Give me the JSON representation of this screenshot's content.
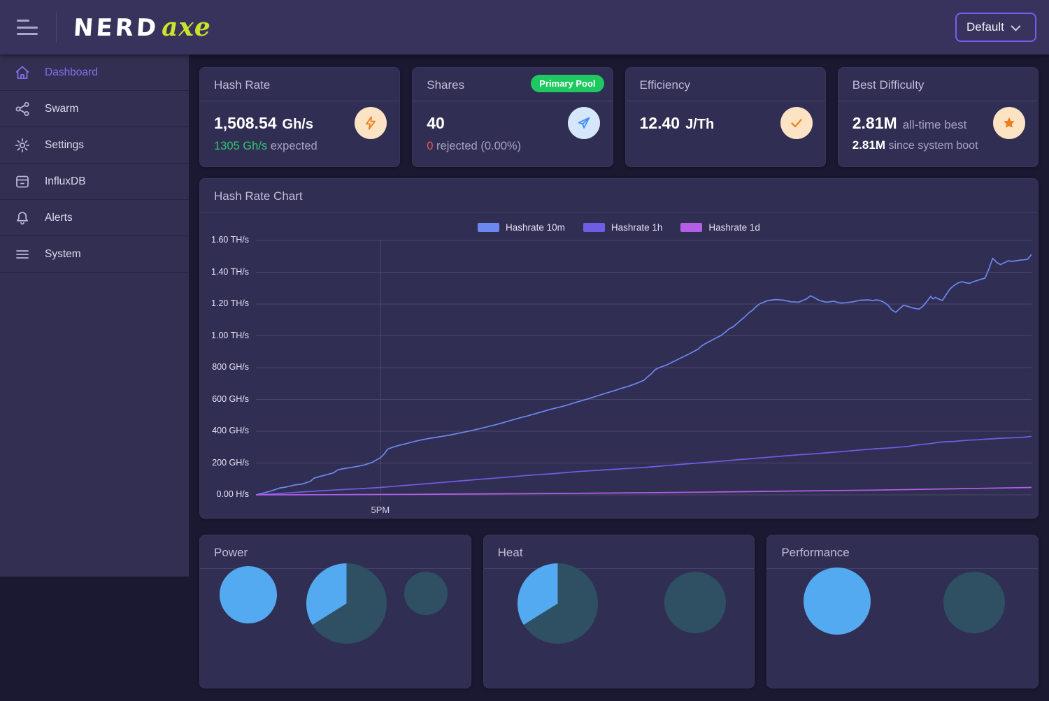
{
  "header": {
    "logo_primary": "NERD",
    "logo_secondary": "axe",
    "profile_label": "Default"
  },
  "sidebar": {
    "items": [
      {
        "label": "Dashboard",
        "icon": "home-icon",
        "active": true
      },
      {
        "label": "Swarm",
        "icon": "share-icon",
        "active": false
      },
      {
        "label": "Settings",
        "icon": "gear-icon",
        "active": false
      },
      {
        "label": "InfluxDB",
        "icon": "database-icon",
        "active": false
      },
      {
        "label": "Alerts",
        "icon": "bell-icon",
        "active": false
      },
      {
        "label": "System",
        "icon": "list-icon",
        "active": false
      }
    ]
  },
  "stats": [
    {
      "title": "Hash Rate",
      "value": "1,508.54",
      "unit": "Gh/s",
      "icon": "bolt-icon",
      "sub_value": "1305 Gh/s",
      "sub_text": "expected"
    },
    {
      "title": "Shares",
      "badge": "Primary Pool",
      "value": "40",
      "icon": "send-icon",
      "sub_value": "0",
      "sub_text": "rejected",
      "sub_extra": "(0.00%)"
    },
    {
      "title": "Efficiency",
      "value": "12.40",
      "unit": "J/Th",
      "icon": "check-icon"
    },
    {
      "title": "Best Difficulty",
      "value": "2.81M",
      "unit": "all-time best",
      "icon": "star-icon",
      "line2_value": "2.81M",
      "line2_text": "since system boot"
    }
  ],
  "chart_card": {
    "title": "Hash Rate Chart"
  },
  "chart_data": {
    "type": "line",
    "title": "Hash Rate Chart",
    "unit": "GH/s",
    "ylim": [
      0,
      1600
    ],
    "grid": true,
    "legend_position": "top-center",
    "y_ticks": [
      {
        "value": 1600,
        "label": "1.60 TH/s"
      },
      {
        "value": 1400,
        "label": "1.40 TH/s"
      },
      {
        "value": 1200,
        "label": "1.20 TH/s"
      },
      {
        "value": 1000,
        "label": "1.00 TH/s"
      },
      {
        "value": 800,
        "label": "800 GH/s"
      },
      {
        "value": 600,
        "label": "600 GH/s"
      },
      {
        "value": 400,
        "label": "400 GH/s"
      },
      {
        "value": 200,
        "label": "200 GH/s"
      },
      {
        "value": 0,
        "label": "0.00 H/s"
      }
    ],
    "x_ticks": [
      {
        "percent": 16.1,
        "label": "5PM"
      }
    ],
    "series": [
      {
        "name": "Hashrate 10m",
        "color": "#6d87f0",
        "points": [
          [
            0,
            0
          ],
          [
            1,
            12
          ],
          [
            2,
            25
          ],
          [
            3,
            42
          ],
          [
            4,
            50
          ],
          [
            5,
            62
          ],
          [
            6,
            68
          ],
          [
            7,
            85
          ],
          [
            7.5,
            105
          ],
          [
            8,
            112
          ],
          [
            9,
            125
          ],
          [
            10,
            138
          ],
          [
            10.5,
            155
          ],
          [
            11,
            162
          ],
          [
            12,
            170
          ],
          [
            13,
            178
          ],
          [
            14,
            188
          ],
          [
            15,
            205
          ],
          [
            16,
            232
          ],
          [
            16.5,
            255
          ],
          [
            17,
            288
          ],
          [
            18,
            305
          ],
          [
            19,
            318
          ],
          [
            20,
            330
          ],
          [
            21,
            342
          ],
          [
            22,
            352
          ],
          [
            23,
            360
          ],
          [
            24,
            368
          ],
          [
            25,
            376
          ],
          [
            26,
            386
          ],
          [
            27,
            396
          ],
          [
            28,
            406
          ],
          [
            29,
            418
          ],
          [
            30,
            430
          ],
          [
            31,
            442
          ],
          [
            32,
            456
          ],
          [
            33,
            470
          ],
          [
            34,
            484
          ],
          [
            35,
            496
          ],
          [
            36,
            510
          ],
          [
            37,
            524
          ],
          [
            38,
            538
          ],
          [
            39,
            550
          ],
          [
            40,
            562
          ],
          [
            41,
            578
          ],
          [
            42,
            592
          ],
          [
            43,
            606
          ],
          [
            44,
            622
          ],
          [
            45,
            638
          ],
          [
            46,
            652
          ],
          [
            47,
            668
          ],
          [
            48,
            682
          ],
          [
            49,
            700
          ],
          [
            50,
            720
          ],
          [
            50.5,
            742
          ],
          [
            51,
            762
          ],
          [
            51.5,
            788
          ],
          [
            52,
            800
          ],
          [
            53,
            818
          ],
          [
            54,
            842
          ],
          [
            55,
            866
          ],
          [
            56,
            890
          ],
          [
            57,
            916
          ],
          [
            57.5,
            938
          ],
          [
            58,
            952
          ],
          [
            59,
            978
          ],
          [
            60,
            1004
          ],
          [
            60.5,
            1022
          ],
          [
            61,
            1044
          ],
          [
            61.5,
            1056
          ],
          [
            62,
            1076
          ],
          [
            62.5,
            1098
          ],
          [
            63,
            1118
          ],
          [
            63.5,
            1142
          ],
          [
            64,
            1160
          ],
          [
            64.5,
            1184
          ],
          [
            65,
            1202
          ],
          [
            65.5,
            1212
          ],
          [
            66,
            1222
          ],
          [
            67,
            1228
          ],
          [
            68,
            1224
          ],
          [
            69,
            1214
          ],
          [
            70,
            1212
          ],
          [
            70.5,
            1222
          ],
          [
            71,
            1232
          ],
          [
            71.5,
            1252
          ],
          [
            72,
            1240
          ],
          [
            72.5,
            1226
          ],
          [
            73,
            1218
          ],
          [
            73.5,
            1212
          ],
          [
            74,
            1214
          ],
          [
            74.5,
            1218
          ],
          [
            75,
            1210
          ],
          [
            75.5,
            1206
          ],
          [
            76,
            1208
          ],
          [
            77,
            1214
          ],
          [
            77.5,
            1220
          ],
          [
            78,
            1224
          ],
          [
            79,
            1226
          ],
          [
            79.5,
            1222
          ],
          [
            80,
            1226
          ],
          [
            80.5,
            1222
          ],
          [
            81,
            1210
          ],
          [
            81.5,
            1192
          ],
          [
            82,
            1162
          ],
          [
            82.5,
            1148
          ],
          [
            83,
            1170
          ],
          [
            83.5,
            1192
          ],
          [
            84,
            1186
          ],
          [
            84.5,
            1178
          ],
          [
            85,
            1172
          ],
          [
            85.5,
            1168
          ],
          [
            86,
            1186
          ],
          [
            86.5,
            1216
          ],
          [
            87,
            1248
          ],
          [
            87.3,
            1232
          ],
          [
            87.6,
            1242
          ],
          [
            88,
            1232
          ],
          [
            88.5,
            1222
          ],
          [
            89,
            1260
          ],
          [
            89.5,
            1296
          ],
          [
            90,
            1316
          ],
          [
            90.5,
            1332
          ],
          [
            91,
            1340
          ],
          [
            91.5,
            1334
          ],
          [
            92,
            1330
          ],
          [
            92.5,
            1340
          ],
          [
            93,
            1348
          ],
          [
            93.5,
            1356
          ],
          [
            94,
            1362
          ],
          [
            94.5,
            1420
          ],
          [
            95,
            1488
          ],
          [
            95.5,
            1462
          ],
          [
            96,
            1448
          ],
          [
            96.5,
            1460
          ],
          [
            97,
            1472
          ],
          [
            97.5,
            1468
          ],
          [
            98,
            1472
          ],
          [
            98.5,
            1476
          ],
          [
            99,
            1478
          ],
          [
            99.5,
            1482
          ],
          [
            100,
            1512
          ]
        ]
      },
      {
        "name": "Hashrate 1h",
        "color": "#6f5de4",
        "points": [
          [
            0,
            0
          ],
          [
            2,
            5
          ],
          [
            4,
            12
          ],
          [
            6,
            18
          ],
          [
            8,
            24
          ],
          [
            10,
            30
          ],
          [
            12,
            35
          ],
          [
            14,
            40
          ],
          [
            16,
            46
          ],
          [
            18,
            54
          ],
          [
            20,
            62
          ],
          [
            22,
            70
          ],
          [
            24,
            78
          ],
          [
            26,
            86
          ],
          [
            28,
            94
          ],
          [
            30,
            102
          ],
          [
            32,
            110
          ],
          [
            34,
            118
          ],
          [
            36,
            126
          ],
          [
            38,
            132
          ],
          [
            40,
            140
          ],
          [
            42,
            148
          ],
          [
            44,
            154
          ],
          [
            46,
            160
          ],
          [
            48,
            166
          ],
          [
            50,
            172
          ],
          [
            52,
            180
          ],
          [
            54,
            188
          ],
          [
            56,
            196
          ],
          [
            58,
            204
          ],
          [
            60,
            212
          ],
          [
            62,
            220
          ],
          [
            64,
            228
          ],
          [
            66,
            236
          ],
          [
            68,
            244
          ],
          [
            70,
            252
          ],
          [
            72,
            258
          ],
          [
            74,
            266
          ],
          [
            76,
            274
          ],
          [
            78,
            282
          ],
          [
            80,
            290
          ],
          [
            82,
            296
          ],
          [
            84,
            304
          ],
          [
            85,
            312
          ],
          [
            86,
            318
          ],
          [
            87,
            322
          ],
          [
            88,
            330
          ],
          [
            89,
            334
          ],
          [
            90,
            336
          ],
          [
            91,
            340
          ],
          [
            92,
            344
          ],
          [
            93,
            346
          ],
          [
            94,
            350
          ],
          [
            95,
            352
          ],
          [
            96,
            356
          ],
          [
            97,
            358
          ],
          [
            98,
            360
          ],
          [
            99,
            362
          ],
          [
            100,
            368
          ]
        ]
      },
      {
        "name": "Hashrate 1d",
        "color": "#b25fe6",
        "points": [
          [
            0,
            0
          ],
          [
            10,
            1
          ],
          [
            20,
            3
          ],
          [
            30,
            6
          ],
          [
            40,
            9
          ],
          [
            50,
            13
          ],
          [
            60,
            18
          ],
          [
            70,
            24
          ],
          [
            80,
            30
          ],
          [
            90,
            38
          ],
          [
            100,
            46
          ]
        ]
      }
    ]
  },
  "bottom_cards": [
    {
      "title": "Power"
    },
    {
      "title": "Heat"
    },
    {
      "title": "Performance"
    }
  ],
  "colors": {
    "accent_purple": "#8172ea",
    "badge_green": "#1fc961",
    "expected_green": "#2dc96d",
    "rejected_red": "#e45858",
    "icon_orange": "#ee7d18",
    "icon_blue": "#3d8ef5",
    "gauge_blue": "#54aaf0",
    "gauge_teal": "#2f4f63",
    "logo_yellow": "#cde22a"
  }
}
